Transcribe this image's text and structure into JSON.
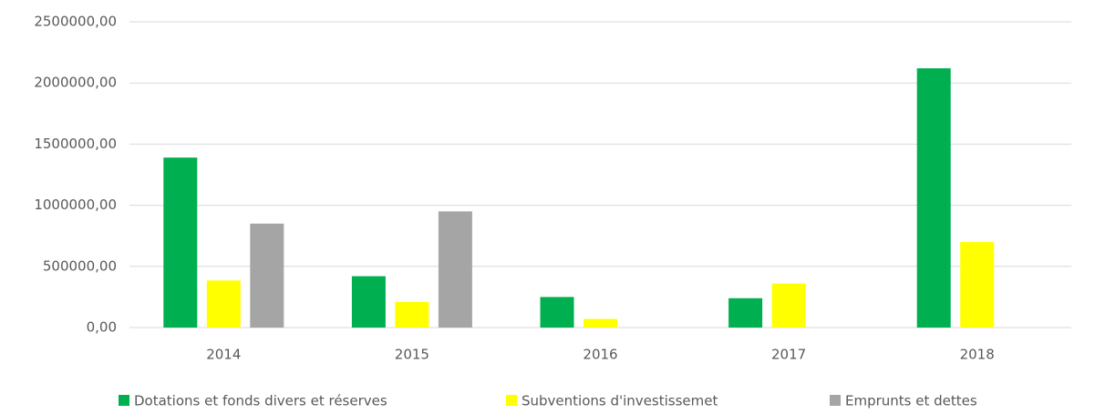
{
  "chart_data": {
    "type": "bar",
    "categories": [
      "2014",
      "2015",
      "2016",
      "2017",
      "2018"
    ],
    "series": [
      {
        "name": "Dotations et fonds divers et réserves",
        "color": "#00b050",
        "values": [
          1390000,
          420000,
          250000,
          240000,
          2120000
        ]
      },
      {
        "name": "Subventions d'investissemet",
        "color": "#ffff00",
        "values": [
          385000,
          210000,
          70000,
          360000,
          700000
        ]
      },
      {
        "name": "Emprunts et dettes",
        "color": "#a5a5a5",
        "values": [
          850000,
          950000,
          0,
          0,
          0
        ]
      }
    ],
    "ylim": [
      0,
      2500000
    ],
    "yticks": [
      {
        "value": 0,
        "label": "0,00"
      },
      {
        "value": 500000,
        "label": "500000,00"
      },
      {
        "value": 1000000,
        "label": "1000000,00"
      },
      {
        "value": 1500000,
        "label": "1500000,00"
      },
      {
        "value": 2000000,
        "label": "2000000,00"
      },
      {
        "value": 2500000,
        "label": "2500000,00"
      }
    ],
    "grid": true,
    "legend": "bottom"
  }
}
